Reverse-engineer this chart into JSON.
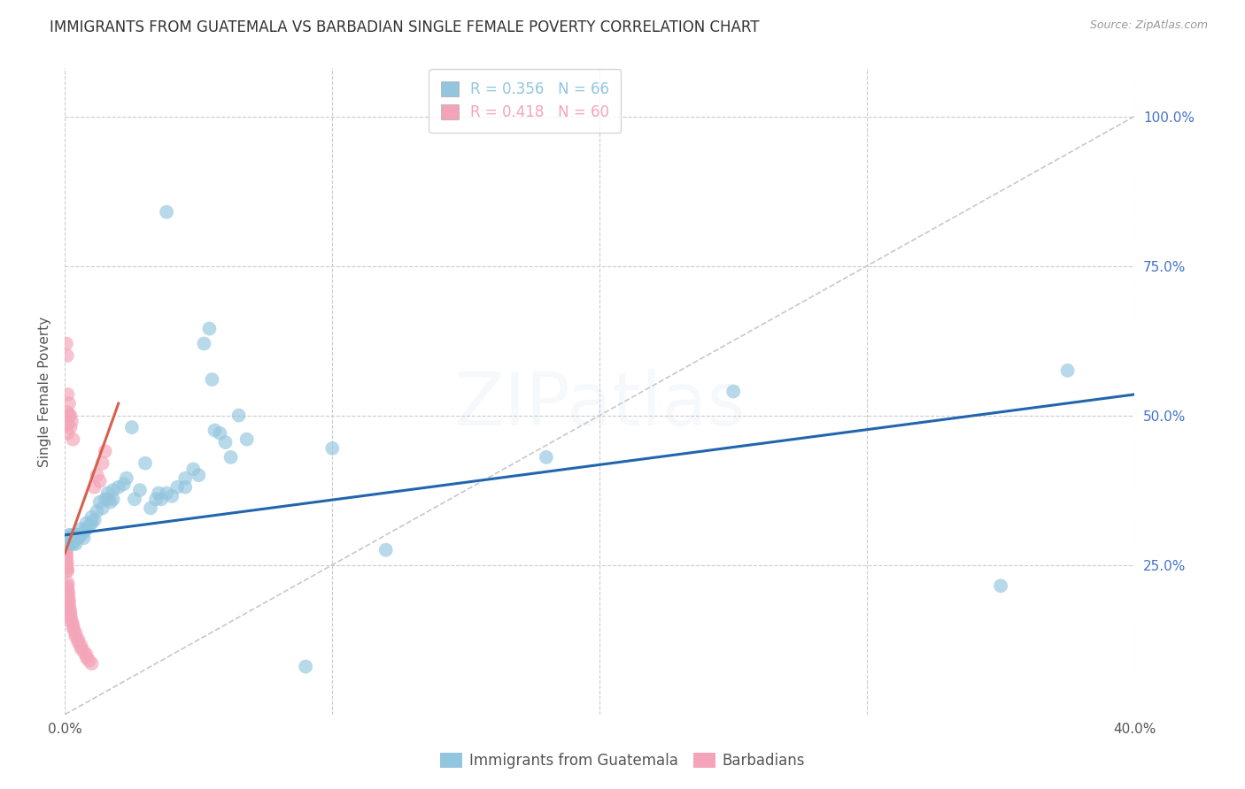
{
  "title": "IMMIGRANTS FROM GUATEMALA VS BARBADIAN SINGLE FEMALE POVERTY CORRELATION CHART",
  "source": "Source: ZipAtlas.com",
  "ylabel": "Single Female Poverty",
  "x_tick_labels": [
    "0.0%",
    "",
    "",
    "",
    "40.0%"
  ],
  "x_tick_values": [
    0.0,
    0.1,
    0.2,
    0.3,
    0.4
  ],
  "y_tick_labels": [
    "100.0%",
    "75.0%",
    "50.0%",
    "25.0%"
  ],
  "y_tick_values": [
    1.0,
    0.75,
    0.5,
    0.25
  ],
  "xlim": [
    0.0,
    0.4
  ],
  "ylim": [
    0.0,
    1.08
  ],
  "legend_r1": "R = 0.356",
  "legend_n1": "N = 66",
  "legend_r2": "R = 0.418",
  "legend_n2": "N = 60",
  "legend_label1": "Immigrants from Guatemala",
  "legend_label2": "Barbadians",
  "blue_color": "#92c5de",
  "pink_color": "#f4a4b8",
  "blue_line_color": "#2166ac",
  "pink_line_color": "#d6604d",
  "scatter_blue": [
    [
      0.0005,
      0.295
    ],
    [
      0.001,
      0.29
    ],
    [
      0.0015,
      0.3
    ],
    [
      0.002,
      0.285
    ],
    [
      0.002,
      0.295
    ],
    [
      0.0025,
      0.3
    ],
    [
      0.003,
      0.285
    ],
    [
      0.003,
      0.295
    ],
    [
      0.0035,
      0.29
    ],
    [
      0.004,
      0.3
    ],
    [
      0.004,
      0.285
    ],
    [
      0.005,
      0.295
    ],
    [
      0.005,
      0.3
    ],
    [
      0.006,
      0.3
    ],
    [
      0.006,
      0.31
    ],
    [
      0.007,
      0.305
    ],
    [
      0.007,
      0.295
    ],
    [
      0.008,
      0.32
    ],
    [
      0.008,
      0.31
    ],
    [
      0.009,
      0.315
    ],
    [
      0.01,
      0.33
    ],
    [
      0.01,
      0.32
    ],
    [
      0.011,
      0.325
    ],
    [
      0.012,
      0.34
    ],
    [
      0.013,
      0.355
    ],
    [
      0.014,
      0.345
    ],
    [
      0.015,
      0.36
    ],
    [
      0.016,
      0.37
    ],
    [
      0.017,
      0.355
    ],
    [
      0.018,
      0.375
    ],
    [
      0.018,
      0.36
    ],
    [
      0.02,
      0.38
    ],
    [
      0.022,
      0.385
    ],
    [
      0.023,
      0.395
    ],
    [
      0.025,
      0.48
    ],
    [
      0.026,
      0.36
    ],
    [
      0.028,
      0.375
    ],
    [
      0.03,
      0.42
    ],
    [
      0.032,
      0.345
    ],
    [
      0.034,
      0.36
    ],
    [
      0.035,
      0.37
    ],
    [
      0.036,
      0.36
    ],
    [
      0.038,
      0.37
    ],
    [
      0.04,
      0.365
    ],
    [
      0.042,
      0.38
    ],
    [
      0.045,
      0.395
    ],
    [
      0.045,
      0.38
    ],
    [
      0.048,
      0.41
    ],
    [
      0.05,
      0.4
    ],
    [
      0.052,
      0.62
    ],
    [
      0.054,
      0.645
    ],
    [
      0.055,
      0.56
    ],
    [
      0.056,
      0.475
    ],
    [
      0.058,
      0.47
    ],
    [
      0.06,
      0.455
    ],
    [
      0.062,
      0.43
    ],
    [
      0.065,
      0.5
    ],
    [
      0.068,
      0.46
    ],
    [
      0.09,
      0.08
    ],
    [
      0.1,
      0.445
    ],
    [
      0.12,
      0.275
    ],
    [
      0.18,
      0.43
    ],
    [
      0.25,
      0.54
    ],
    [
      0.35,
      0.215
    ],
    [
      0.375,
      0.575
    ],
    [
      0.038,
      0.84
    ]
  ],
  "scatter_pink": [
    [
      0.0002,
      0.285
    ],
    [
      0.0002,
      0.29
    ],
    [
      0.0003,
      0.28
    ],
    [
      0.0003,
      0.285
    ],
    [
      0.0004,
      0.27
    ],
    [
      0.0004,
      0.275
    ],
    [
      0.0005,
      0.265
    ],
    [
      0.0005,
      0.27
    ],
    [
      0.0006,
      0.26
    ],
    [
      0.0007,
      0.255
    ],
    [
      0.0007,
      0.25
    ],
    [
      0.0008,
      0.245
    ],
    [
      0.0008,
      0.24
    ],
    [
      0.0009,
      0.24
    ],
    [
      0.001,
      0.22
    ],
    [
      0.001,
      0.215
    ],
    [
      0.001,
      0.21
    ],
    [
      0.0012,
      0.205
    ],
    [
      0.0012,
      0.2
    ],
    [
      0.0013,
      0.195
    ],
    [
      0.0015,
      0.19
    ],
    [
      0.0015,
      0.185
    ],
    [
      0.0016,
      0.18
    ],
    [
      0.0018,
      0.175
    ],
    [
      0.002,
      0.17
    ],
    [
      0.002,
      0.165
    ],
    [
      0.0022,
      0.16
    ],
    [
      0.0025,
      0.155
    ],
    [
      0.003,
      0.15
    ],
    [
      0.003,
      0.145
    ],
    [
      0.0035,
      0.14
    ],
    [
      0.004,
      0.135
    ],
    [
      0.004,
      0.13
    ],
    [
      0.005,
      0.125
    ],
    [
      0.005,
      0.12
    ],
    [
      0.006,
      0.115
    ],
    [
      0.006,
      0.11
    ],
    [
      0.007,
      0.105
    ],
    [
      0.008,
      0.1
    ],
    [
      0.008,
      0.095
    ],
    [
      0.009,
      0.09
    ],
    [
      0.01,
      0.085
    ],
    [
      0.011,
      0.38
    ],
    [
      0.012,
      0.4
    ],
    [
      0.013,
      0.39
    ],
    [
      0.014,
      0.42
    ],
    [
      0.015,
      0.44
    ],
    [
      0.016,
      0.36
    ],
    [
      0.001,
      0.485
    ],
    [
      0.001,
      0.505
    ],
    [
      0.001,
      0.535
    ],
    [
      0.001,
      0.47
    ],
    [
      0.0015,
      0.5
    ],
    [
      0.0015,
      0.52
    ],
    [
      0.002,
      0.48
    ],
    [
      0.002,
      0.5
    ],
    [
      0.0025,
      0.49
    ],
    [
      0.003,
      0.46
    ],
    [
      0.0005,
      0.62
    ],
    [
      0.0008,
      0.6
    ]
  ],
  "blue_trend_x": [
    0.0,
    0.4
  ],
  "blue_trend_y": [
    0.3,
    0.535
  ],
  "pink_trend_x": [
    0.0,
    0.02
  ],
  "pink_trend_y": [
    0.27,
    0.52
  ],
  "diag_line_x": [
    0.0,
    0.4
  ],
  "diag_line_y": [
    0.0,
    1.0
  ],
  "watermark": "ZIPatlas",
  "background_color": "#ffffff",
  "grid_color": "#cccccc",
  "title_fontsize": 12,
  "axis_label_fontsize": 11,
  "tick_fontsize": 11,
  "legend_fontsize": 12,
  "watermark_alpha": 0.12
}
